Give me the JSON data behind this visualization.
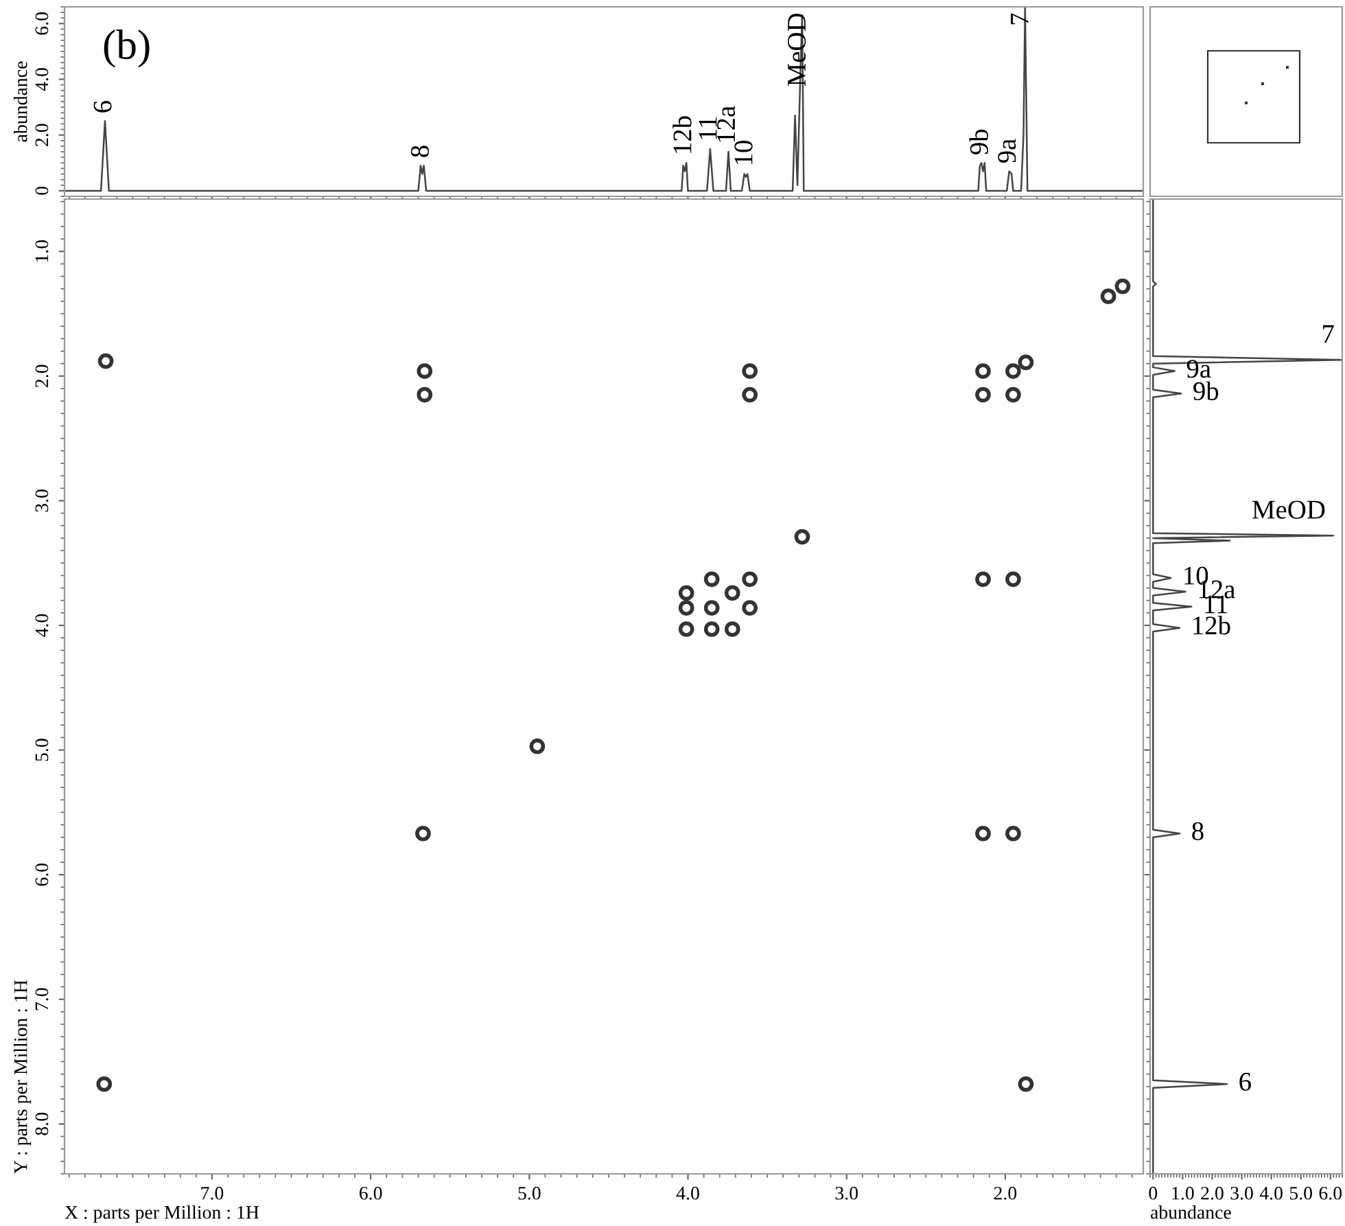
{
  "chart_data": [
    {
      "type": "line",
      "title": "(b)",
      "ylabel": "abundance",
      "tick_labels": "y",
      "xlim": [
        7.93,
        1.13
      ],
      "xticks": [
        7,
        6,
        5,
        4,
        3,
        2
      ],
      "ylim": [
        -0.2,
        6.6
      ],
      "yticks": [
        0,
        {
          "value": 2,
          "label": "2.0"
        },
        {
          "value": 4,
          "label": "4.0"
        },
        {
          "value": 6,
          "label": "6.0"
        }
      ],
      "grid": false,
      "marker": "none",
      "series": [
        {
          "color": "#444444",
          "x": [
            7.93,
            7.7,
            7.675,
            7.65,
            5.7,
            5.685,
            5.675,
            5.665,
            5.65,
            4.04,
            4.03,
            4.02,
            4.01,
            4.0,
            3.88,
            3.86,
            3.84,
            3.76,
            3.745,
            3.73,
            3.66,
            3.645,
            3.635,
            3.625,
            3.61,
            3.34,
            3.325,
            3.31,
            3.29,
            3.28,
            3.27,
            2.17,
            2.16,
            2.15,
            2.14,
            2.13,
            2.12,
            1.99,
            1.975,
            1.96,
            1.95,
            1.9,
            1.885,
            1.875,
            1.86,
            1.13
          ],
          "values": [
            0,
            0,
            2.5,
            0,
            0,
            0.9,
            0.6,
            0.9,
            0,
            0,
            0.9,
            0.7,
            1.0,
            0,
            0,
            1.5,
            0,
            0,
            1.4,
            0,
            0,
            0.6,
            0.5,
            0.6,
            0,
            0,
            2.7,
            0.2,
            4.5,
            6.3,
            0,
            0,
            0.9,
            1.0,
            0.7,
            1.0,
            0,
            0,
            0.7,
            0.6,
            0,
            0,
            2.0,
            6.6,
            0,
            0
          ]
        }
      ],
      "annotations": [
        {
          "text": "6",
          "x": 7.675,
          "y": 2.5
        },
        {
          "text": "8",
          "x": 5.675,
          "y": 0.9
        },
        {
          "text": "12b",
          "x": 4.02,
          "y": 1.0
        },
        {
          "text": "11",
          "x": 3.86,
          "y": 1.5
        },
        {
          "text": "12a",
          "x": 3.745,
          "y": 1.4
        },
        {
          "text": "10",
          "x": 3.635,
          "y": 0.6
        },
        {
          "text": "MeOD",
          "x": 3.28,
          "y": 6.3
        },
        {
          "text": "9b",
          "x": 2.15,
          "y": 1.0
        },
        {
          "text": "9a",
          "x": 1.975,
          "y": 0.7
        },
        {
          "text": "7",
          "x": 1.875,
          "y": 6.6
        }
      ]
    },
    {
      "type": "scatter",
      "xlabel": "X : parts per Million : 1H",
      "ylabel": "Y : parts per Million : 1H",
      "xlim": [
        7.93,
        1.13
      ],
      "xticks": [
        {
          "value": 7,
          "label": "7.0"
        },
        {
          "value": 6,
          "label": "6.0"
        },
        {
          "value": 5,
          "label": "5.0"
        },
        {
          "value": 4,
          "label": "4.0"
        },
        {
          "value": 3,
          "label": "3.0"
        },
        {
          "value": 2,
          "label": "2.0"
        }
      ],
      "ylim": [
        8.4,
        0.58
      ],
      "yticks": [
        {
          "value": 1,
          "label": "1.0"
        },
        {
          "value": 2,
          "label": "2.0"
        },
        {
          "value": 3,
          "label": "3.0"
        },
        {
          "value": 4,
          "label": "4.0"
        },
        {
          "value": 5,
          "label": "5.0"
        },
        {
          "value": 6,
          "label": "6.0"
        },
        {
          "value": 7,
          "label": "7.0"
        },
        {
          "value": 8,
          "label": "8.0"
        }
      ],
      "grid": false,
      "marker": "circle",
      "series": [
        {
          "color": "#333333",
          "x": [
            7.67,
            5.66,
            5.66,
            4.95,
            4.01,
            4.01,
            3.72,
            3.72,
            3.85,
            3.61,
            3.85,
            4.01,
            3.61,
            3.85,
            3.28,
            2.14,
            1.95,
            3.61,
            3.61,
            2.14,
            2.14,
            1.95,
            1.95,
            1.87,
            1.26,
            1.35,
            7.68,
            5.67,
            2.14,
            1.95,
            1.87
          ],
          "values": [
            1.88,
            1.96,
            2.15,
            4.97,
            3.74,
            4.03,
            3.74,
            4.03,
            3.86,
            3.63,
            3.63,
            3.86,
            3.86,
            4.03,
            3.29,
            3.63,
            3.63,
            1.96,
            2.15,
            1.96,
            2.15,
            2.15,
            1.96,
            1.89,
            1.28,
            1.36,
            7.68,
            5.67,
            5.67,
            5.67,
            7.68
          ]
        }
      ]
    },
    {
      "type": "line",
      "xlabel": "abundance",
      "tick_labels": "x",
      "xlim": [
        -0.1,
        6.4
      ],
      "xticks": [
        0,
        {
          "value": 1,
          "label": "1.0"
        },
        {
          "value": 2,
          "label": "2.0"
        },
        {
          "value": 3,
          "label": "3.0"
        },
        {
          "value": 4,
          "label": "4.0"
        },
        {
          "value": 5,
          "label": "5.0"
        },
        {
          "value": 6,
          "label": "6.0"
        }
      ],
      "ylim": [
        8.4,
        0.58
      ],
      "yticks": [
        1,
        2,
        3,
        4,
        5,
        6,
        7,
        8
      ],
      "grid": false,
      "marker": "none",
      "series": [
        {
          "color": "#444444",
          "x": [
            0,
            0,
            0.1,
            0,
            0,
            6.4,
            0,
            0,
            0.73,
            0,
            0,
            0.95,
            0,
            0,
            6.1,
            0,
            2.6,
            0,
            0,
            0.6,
            0,
            0,
            1.1,
            0,
            0,
            1.3,
            0,
            0,
            0.9,
            0,
            0,
            0.9,
            0,
            0,
            2.5,
            0,
            0
          ],
          "values": [
            0.58,
            1.24,
            1.26,
            1.28,
            1.84,
            1.87,
            1.9,
            1.93,
            1.96,
            1.99,
            2.11,
            2.14,
            2.17,
            3.26,
            3.28,
            3.3,
            3.32,
            3.34,
            3.59,
            3.62,
            3.65,
            3.7,
            3.73,
            3.76,
            3.82,
            3.85,
            3.88,
            3.99,
            4.02,
            4.05,
            5.64,
            5.67,
            5.7,
            7.65,
            7.68,
            7.71,
            8.4
          ]
        }
      ],
      "annotations": [
        {
          "text": "7",
          "x": 6.4,
          "y": 1.87
        },
        {
          "text": "9a",
          "x": 0.73,
          "y": 1.96
        },
        {
          "text": "9b",
          "x": 0.95,
          "y": 2.14
        },
        {
          "text": "MeOD",
          "x": 6.1,
          "y": 3.28
        },
        {
          "text": "10",
          "x": 0.6,
          "y": 3.62
        },
        {
          "text": "12a",
          "x": 1.1,
          "y": 3.73
        },
        {
          "text": "11",
          "x": 1.3,
          "y": 3.85
        },
        {
          "text": "12b",
          "x": 0.9,
          "y": 4.02
        },
        {
          "text": "8",
          "x": 0.9,
          "y": 5.67
        },
        {
          "text": "6",
          "x": 2.5,
          "y": 7.68
        }
      ]
    }
  ]
}
